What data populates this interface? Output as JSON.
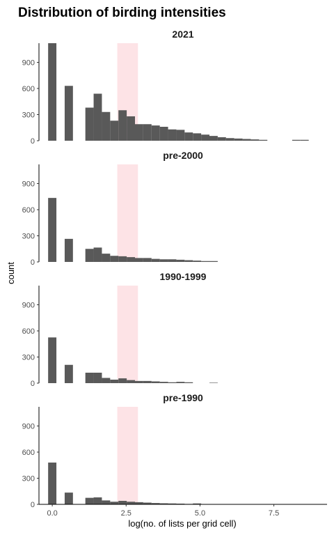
{
  "chart_data": {
    "type": "bar",
    "title": "Distribution of birding intensities",
    "xlabel": "log(no. of lists per grid cell)",
    "ylabel": "count",
    "xlim": [
      -0.45,
      9.3
    ],
    "ylim": [
      0,
      1120
    ],
    "x_ticks": [
      0.0,
      2.5,
      5.0,
      7.5
    ],
    "x_tick_labels": [
      "0.0",
      "2.5",
      "5.0",
      "7.5"
    ],
    "y_ticks": [
      0,
      300,
      600,
      900
    ],
    "bin_width": 0.28,
    "bin_starts": [
      -0.14,
      0.42,
      1.12,
      1.4,
      1.68,
      1.96,
      2.24,
      2.52,
      2.8,
      3.08,
      3.36,
      3.64,
      3.92,
      4.2,
      4.48,
      4.76,
      5.04,
      5.32,
      5.6,
      5.88,
      6.16,
      6.44,
      6.72,
      7.0,
      7.84,
      8.12,
      8.4
    ],
    "highlight_band": {
      "x_start": 2.2,
      "x_end": 2.9,
      "color": "#fde3e6"
    },
    "bar_color": "#595959",
    "panels": [
      {
        "name": "2021",
        "values": [
          1120,
          630,
          380,
          540,
          330,
          230,
          350,
          280,
          190,
          190,
          175,
          160,
          130,
          125,
          95,
          85,
          70,
          55,
          40,
          30,
          25,
          20,
          15,
          10,
          0,
          10,
          10
        ]
      },
      {
        "name": "pre-2000",
        "values": [
          735,
          265,
          150,
          165,
          95,
          70,
          65,
          55,
          45,
          45,
          35,
          30,
          30,
          25,
          20,
          15,
          10,
          10,
          0,
          0,
          0,
          0,
          0,
          0,
          0,
          0,
          0
        ]
      },
      {
        "name": "1990-1999",
        "values": [
          525,
          210,
          120,
          120,
          60,
          40,
          55,
          35,
          25,
          25,
          20,
          15,
          10,
          15,
          10,
          0,
          0,
          5,
          0,
          0,
          0,
          0,
          0,
          0,
          0,
          0,
          0
        ]
      },
      {
        "name": "pre-1990",
        "values": [
          480,
          135,
          75,
          80,
          45,
          30,
          40,
          30,
          25,
          20,
          15,
          12,
          10,
          8,
          5,
          10,
          0,
          0,
          0,
          0,
          0,
          0,
          0,
          0,
          0,
          0,
          0
        ]
      }
    ]
  }
}
